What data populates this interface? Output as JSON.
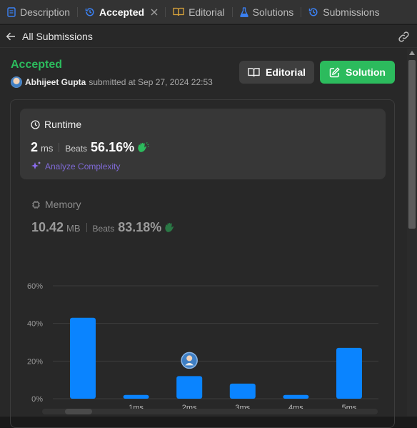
{
  "tabs": [
    {
      "label": "Description",
      "icon": "description-icon",
      "active": false
    },
    {
      "label": "Accepted",
      "icon": "history-icon",
      "active": true
    },
    {
      "label": "Editorial",
      "icon": "book-icon",
      "active": false
    },
    {
      "label": "Solutions",
      "icon": "flask-icon",
      "active": false
    },
    {
      "label": "Submissions",
      "icon": "history-icon",
      "active": false
    }
  ],
  "back": {
    "label": "All Submissions"
  },
  "submission": {
    "status": "Accepted",
    "user": "Abhijeet Gupta",
    "submitted_text": "submitted at Sep 27, 2024 22:53"
  },
  "buttons": {
    "editorial": "Editorial",
    "solution": "Solution"
  },
  "runtime": {
    "title": "Runtime",
    "value": "2",
    "unit": "ms",
    "beats_label": "Beats",
    "beats_pct": "56.16%",
    "analyze_label": "Analyze Complexity"
  },
  "memory": {
    "title": "Memory",
    "value": "10.42",
    "unit": "MB",
    "beats_label": "Beats",
    "beats_pct": "83.18%"
  },
  "colors": {
    "accepted": "#2cbb5d",
    "bar": "#0a84ff",
    "analyze": "#7f6ad6",
    "clap": "#2cbb5d"
  },
  "chart_data": {
    "type": "bar",
    "categories": [
      "",
      "1ms",
      "2ms",
      "3ms",
      "4ms",
      "5ms"
    ],
    "values": [
      43,
      2,
      12,
      8,
      2,
      27
    ],
    "ylim": [
      0,
      60
    ],
    "yticks": [
      "0%",
      "20%",
      "40%",
      "60%"
    ],
    "ytick_values": [
      0,
      20,
      40,
      60
    ],
    "grid": true,
    "highlight_index": 2
  }
}
